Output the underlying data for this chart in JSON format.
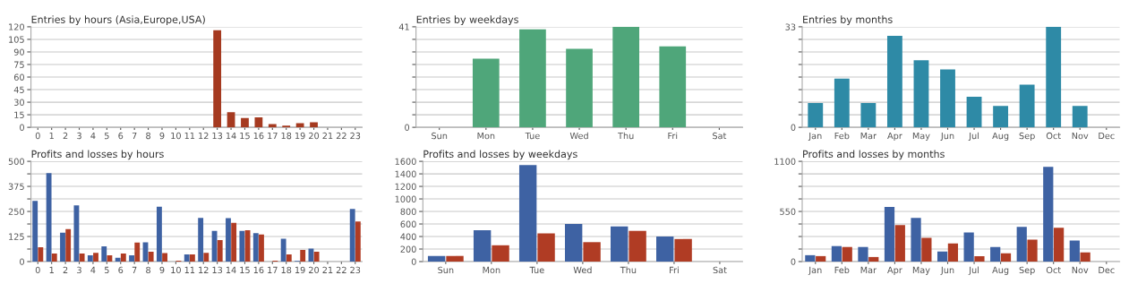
{
  "chart_data": [
    {
      "type": "bar",
      "title": "Entries by hours (Asia,Europe,USA)",
      "categories": [
        "0",
        "1",
        "2",
        "3",
        "4",
        "5",
        "6",
        "7",
        "8",
        "9",
        "10",
        "11",
        "12",
        "13",
        "14",
        "15",
        "16",
        "17",
        "18",
        "19",
        "20",
        "21",
        "22",
        "23"
      ],
      "values": [
        0,
        0,
        0,
        0,
        0,
        0,
        0,
        0,
        0,
        0,
        0,
        0,
        0,
        116,
        18,
        11,
        12,
        4,
        2,
        5,
        6,
        0,
        0,
        0
      ],
      "color": "#a53a20",
      "ylim": [
        0,
        120
      ],
      "yticks": [
        0,
        15,
        30,
        45,
        60,
        75,
        90,
        105,
        120
      ],
      "grid": "y"
    },
    {
      "type": "bar",
      "title": "Entries by weekdays",
      "categories": [
        "Sun",
        "Mon",
        "Tue",
        "Wed",
        "Thu",
        "Fri",
        "Sat"
      ],
      "values": [
        0,
        28,
        40,
        32,
        41,
        33,
        0
      ],
      "color": "#4fa67a",
      "ylim": [
        0,
        41
      ],
      "yticks": [
        0,
        {
          "value": 5.125,
          "label": null
        },
        {
          "value": 10.25,
          "label": null
        },
        {
          "value": 15.375,
          "label": null
        },
        {
          "value": 20.5,
          "label": null
        },
        {
          "value": 25.625,
          "label": null
        },
        {
          "value": 30.75,
          "label": null
        },
        {
          "value": 35.875,
          "label": null
        },
        41
      ],
      "grid": "y"
    },
    {
      "type": "bar",
      "title": "Entries by months",
      "categories": [
        "Jan",
        "Feb",
        "Mar",
        "Apr",
        "May",
        "Jun",
        "Jul",
        "Aug",
        "Sep",
        "Oct",
        "Nov",
        "Dec"
      ],
      "values": [
        8,
        16,
        8,
        30,
        22,
        19,
        10,
        7,
        14,
        33,
        7,
        0
      ],
      "color": "#2e8aa6",
      "ylim": [
        0,
        33
      ],
      "yticks": [
        0,
        {
          "value": 4.125,
          "label": null
        },
        {
          "value": 8.25,
          "label": null
        },
        {
          "value": 12.375,
          "label": null
        },
        {
          "value": 16.5,
          "label": null
        },
        {
          "value": 20.625,
          "label": null
        },
        {
          "value": 24.75,
          "label": null
        },
        {
          "value": 28.875,
          "label": null
        },
        33
      ],
      "grid": "y"
    },
    {
      "type": "bar",
      "title": "Profits and losses by hours",
      "categories": [
        "0",
        "1",
        "2",
        "3",
        "4",
        "5",
        "6",
        "7",
        "8",
        "9",
        "10",
        "11",
        "12",
        "13",
        "14",
        "15",
        "16",
        "17",
        "18",
        "19",
        "20",
        "21",
        "22",
        "23"
      ],
      "series": [
        {
          "color": "#3e62a3",
          "values": [
            303,
            441,
            144,
            280,
            31,
            76,
            19,
            31,
            96,
            274,
            0,
            36,
            218,
            153,
            217,
            153,
            142,
            0,
            114,
            3,
            65,
            0,
            0,
            263
          ]
        },
        {
          "color": "#b03c24",
          "values": [
            71,
            40,
            162,
            40,
            43,
            31,
            40,
            95,
            49,
            42,
            4,
            36,
            43,
            107,
            193,
            156,
            135,
            4,
            36,
            58,
            49,
            0,
            0,
            200
          ]
        }
      ],
      "ylim": [
        0,
        500
      ],
      "yticks": [
        0,
        {
          "value": 62.5,
          "label": null
        },
        125,
        {
          "value": 187.5,
          "label": null
        },
        250,
        {
          "value": 312.5,
          "label": null
        },
        375,
        {
          "value": 437.5,
          "label": null
        },
        500
      ],
      "grid": "y"
    },
    {
      "type": "bar",
      "title": "Profits and losses by weekdays",
      "categories": [
        "Sun",
        "Mon",
        "Tue",
        "Wed",
        "Thu",
        "Fri",
        "Sat"
      ],
      "series": [
        {
          "color": "#3e62a3",
          "values": [
            90,
            500,
            1540,
            600,
            560,
            400,
            0
          ]
        },
        {
          "color": "#b03c24",
          "values": [
            90,
            260,
            450,
            310,
            490,
            360,
            0
          ]
        }
      ],
      "ylim": [
        0,
        1600
      ],
      "yticks": [
        0,
        200,
        400,
        600,
        800,
        1000,
        1200,
        1400,
        1600
      ],
      "grid": "y"
    },
    {
      "type": "bar",
      "title": "Profits and losses by months",
      "categories": [
        "Jan",
        "Feb",
        "Mar",
        "Apr",
        "May",
        "Jun",
        "Jul",
        "Aug",
        "Sep",
        "Oct",
        "Nov",
        "Dec"
      ],
      "series": [
        {
          "color": "#3e62a3",
          "values": [
            70,
            170,
            160,
            600,
            480,
            110,
            320,
            160,
            380,
            1040,
            230,
            0
          ]
        },
        {
          "color": "#b03c24",
          "values": [
            60,
            160,
            50,
            400,
            260,
            200,
            60,
            90,
            240,
            370,
            100,
            0
          ]
        }
      ],
      "ylim": [
        0,
        1100
      ],
      "yticks": [
        0,
        {
          "value": 137.5,
          "label": null
        },
        {
          "value": 275,
          "label": null
        },
        {
          "value": 412.5,
          "label": null
        },
        550,
        {
          "value": 687.5,
          "label": null
        },
        {
          "value": 825,
          "label": null
        },
        {
          "value": 962.5,
          "label": null
        },
        1100
      ],
      "grid": "y"
    }
  ]
}
